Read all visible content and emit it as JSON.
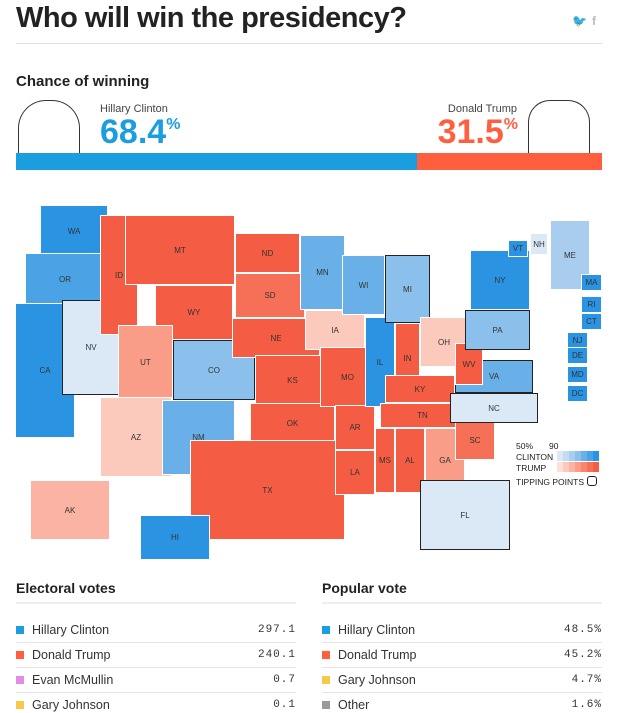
{
  "title": "Who will win the presidency?",
  "social": {
    "twitter": "twitter-icon",
    "facebook": "f"
  },
  "chance": {
    "heading": "Chance of winning",
    "clinton": {
      "name": "Hillary Clinton",
      "value": "68.4",
      "unit": "%",
      "fraction": 0.684,
      "color": "#1a9ee0"
    },
    "trump": {
      "name": "Donald Trump",
      "value": "31.5",
      "unit": "%",
      "fraction": 0.316,
      "color": "#ff5f3f"
    }
  },
  "legend": {
    "p50": "50%",
    "p90": "90",
    "clinton": "CLINTON",
    "trump": "TRUMP",
    "tipping": "TIPPING POINTS"
  },
  "palette": {
    "C": [
      "#dbe9f7",
      "#c4dcf3",
      "#a9cdef",
      "#8cc0ec",
      "#69b0e9",
      "#4aa3e5",
      "#2a94e2"
    ],
    "T": [
      "#fde0d9",
      "#fccabd",
      "#fbb3a3",
      "#f99c88",
      "#f8866f",
      "#f66f57",
      "#f55c44"
    ]
  },
  "states": [
    {
      "abbr": "WA",
      "lean": "C6"
    },
    {
      "abbr": "OR",
      "lean": "C5"
    },
    {
      "abbr": "CA",
      "lean": "C6"
    },
    {
      "abbr": "NV",
      "lean": "C0",
      "tip": true
    },
    {
      "abbr": "ID",
      "lean": "T6"
    },
    {
      "abbr": "MT",
      "lean": "T6"
    },
    {
      "abbr": "WY",
      "lean": "T6"
    },
    {
      "abbr": "UT",
      "lean": "T3"
    },
    {
      "abbr": "CO",
      "lean": "C3",
      "tip": true
    },
    {
      "abbr": "AZ",
      "lean": "T1"
    },
    {
      "abbr": "NM",
      "lean": "C4"
    },
    {
      "abbr": "ND",
      "lean": "T6"
    },
    {
      "abbr": "SD",
      "lean": "T5"
    },
    {
      "abbr": "NE",
      "lean": "T6"
    },
    {
      "abbr": "KS",
      "lean": "T6"
    },
    {
      "abbr": "OK",
      "lean": "T6"
    },
    {
      "abbr": "TX",
      "lean": "T6"
    },
    {
      "abbr": "MN",
      "lean": "C4"
    },
    {
      "abbr": "IA",
      "lean": "T1"
    },
    {
      "abbr": "MO",
      "lean": "T6"
    },
    {
      "abbr": "AR",
      "lean": "T6"
    },
    {
      "abbr": "LA",
      "lean": "T6"
    },
    {
      "abbr": "WI",
      "lean": "C4"
    },
    {
      "abbr": "IL",
      "lean": "C6"
    },
    {
      "abbr": "MI",
      "lean": "C3",
      "tip": true
    },
    {
      "abbr": "IN",
      "lean": "T6"
    },
    {
      "abbr": "OH",
      "lean": "T1"
    },
    {
      "abbr": "KY",
      "lean": "T6"
    },
    {
      "abbr": "TN",
      "lean": "T6"
    },
    {
      "abbr": "MS",
      "lean": "T6"
    },
    {
      "abbr": "AL",
      "lean": "T6"
    },
    {
      "abbr": "GA",
      "lean": "T3"
    },
    {
      "abbr": "FL",
      "lean": "C0",
      "tip": true
    },
    {
      "abbr": "SC",
      "lean": "T5"
    },
    {
      "abbr": "NC",
      "lean": "C0",
      "tip": true
    },
    {
      "abbr": "VA",
      "lean": "C4",
      "tip": true
    },
    {
      "abbr": "WV",
      "lean": "T6"
    },
    {
      "abbr": "PA",
      "lean": "C3",
      "tip": true
    },
    {
      "abbr": "NY",
      "lean": "C6"
    },
    {
      "abbr": "ME",
      "lean": "C2"
    },
    {
      "abbr": "VT",
      "lean": "C6"
    },
    {
      "abbr": "NH",
      "lean": "C0"
    },
    {
      "abbr": "MA",
      "lean": "C6"
    },
    {
      "abbr": "RI",
      "lean": "C6"
    },
    {
      "abbr": "CT",
      "lean": "C6"
    },
    {
      "abbr": "NJ",
      "lean": "C6"
    },
    {
      "abbr": "DE",
      "lean": "C6"
    },
    {
      "abbr": "MD",
      "lean": "C6"
    },
    {
      "abbr": "DC",
      "lean": "C6"
    },
    {
      "abbr": "AK",
      "lean": "T2"
    },
    {
      "abbr": "HI",
      "lean": "C6"
    }
  ],
  "electoral": {
    "heading": "Electoral votes",
    "rows": [
      {
        "name": "Hillary Clinton",
        "value": "297.1",
        "color": "#1a9ee0"
      },
      {
        "name": "Donald Trump",
        "value": "240.1",
        "color": "#ff5f3f"
      },
      {
        "name": "Evan McMullin",
        "value": "0.7",
        "color": "#e38ce3"
      },
      {
        "name": "Gary Johnson",
        "value": "0.1",
        "color": "#f7c948"
      }
    ]
  },
  "popular": {
    "heading": "Popular vote",
    "rows": [
      {
        "name": "Hillary Clinton",
        "value": "48.5%",
        "color": "#1a9ee0"
      },
      {
        "name": "Donald Trump",
        "value": "45.2%",
        "color": "#ff5f3f"
      },
      {
        "name": "Gary Johnson",
        "value": "4.7%",
        "color": "#f7c948"
      },
      {
        "name": "Other",
        "value": "1.6%",
        "color": "#999999"
      }
    ]
  }
}
